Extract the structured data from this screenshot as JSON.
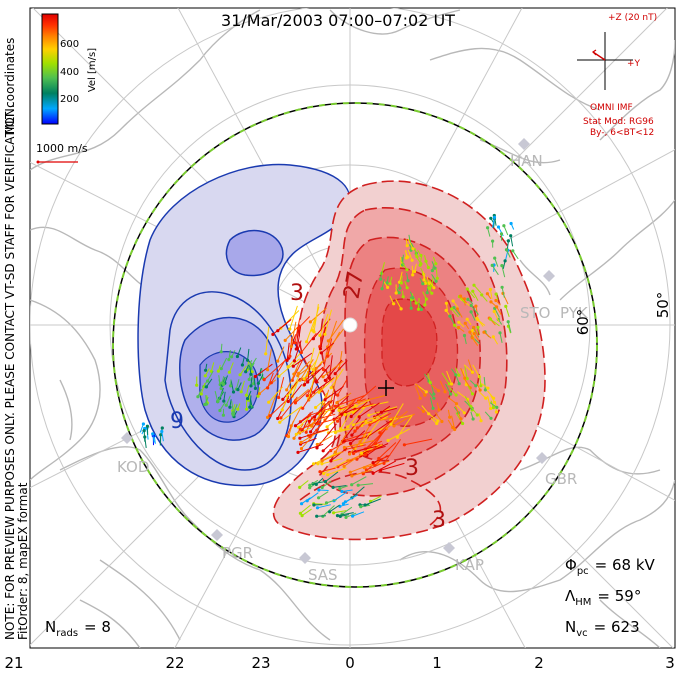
{
  "title": "31/Mar/2003 07:00–07:02 UT",
  "colorbar": {
    "ticks": [
      "600",
      "400",
      "200"
    ],
    "label": "Vel [m/s]",
    "colors": [
      "#0000ff",
      "#00a8ff",
      "#008060",
      "#50c050",
      "#a0e000",
      "#ffd000",
      "#ff8000",
      "#ff3000",
      "#e00000"
    ]
  },
  "coords_label": "MLT coordinates",
  "scale_label": "1000 m/s",
  "imf": {
    "z_label": "+Z (20 nT)",
    "y_label": "+Y",
    "source": "OMNI IMF",
    "model": "Stat Mod: RG96",
    "condition": "By-, 6<BT<12"
  },
  "notes": {
    "line1": "NOTE: FOR PREVIEW PURPOSES ONLY. PLEASE CONTACT VT-SD STAFF FOR VERIFICATION.",
    "line2": "FitOrder: 8, mapEX format"
  },
  "stations": [
    "HAN",
    "PYK",
    "KOD",
    "PGR",
    "SAS",
    "KAP",
    "GBR",
    "STO"
  ],
  "lat_labels": [
    "60°",
    "50°"
  ],
  "contour_labels": [
    "3",
    "27",
    "9",
    "3",
    "3"
  ],
  "stats": {
    "phi_pc_label": "Φ",
    "phi_pc_sub": "pc",
    "phi_pc_value": "= 68 kV",
    "lambda_label": "Λ",
    "lambda_sub": "HM",
    "lambda_value": "= 59°",
    "nvc_label": "N",
    "nvc_sub": "vc",
    "nvc_value": "= 623",
    "nrads_label": "N",
    "nrads_sub": "rads",
    "nrads_value": "= 8"
  },
  "mlt_ticks": [
    "21",
    "22",
    "23",
    "0",
    "1",
    "2",
    "3"
  ]
}
